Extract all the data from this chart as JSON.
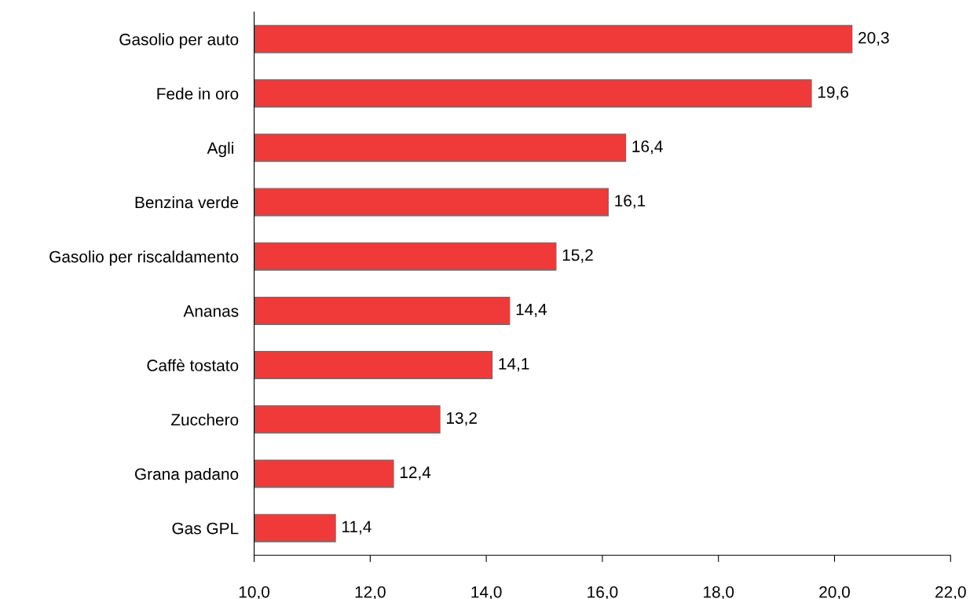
{
  "chart_data": {
    "type": "bar",
    "orientation": "horizontal",
    "categories": [
      "Gasolio per auto",
      "Fede in oro",
      "Agli ",
      "Benzina verde",
      "Gasolio per riscaldamento",
      "Ananas",
      "Caffè tostato",
      "Zucchero",
      "Grana padano",
      "Gas GPL"
    ],
    "values": [
      20.3,
      19.6,
      16.4,
      16.1,
      15.2,
      14.4,
      14.1,
      13.2,
      12.4,
      11.4
    ],
    "value_labels": [
      "20,3",
      "19,6",
      "16,4",
      "16,1",
      "15,2",
      "14,4",
      "14,1",
      "13,2",
      "12,4",
      "11,4"
    ],
    "color": "#f03a3a",
    "xlim": [
      10,
      22
    ],
    "xticks": [
      {
        "value": 10,
        "label": "10,0"
      },
      {
        "value": 12,
        "label": "12,0"
      },
      {
        "value": 14,
        "label": "14,0"
      },
      {
        "value": 16,
        "label": "16,0"
      },
      {
        "value": 18,
        "label": "18,0"
      },
      {
        "value": 20,
        "label": "20,0"
      },
      {
        "value": 22,
        "label": "22,0"
      }
    ],
    "grid": false,
    "legend": false
  }
}
